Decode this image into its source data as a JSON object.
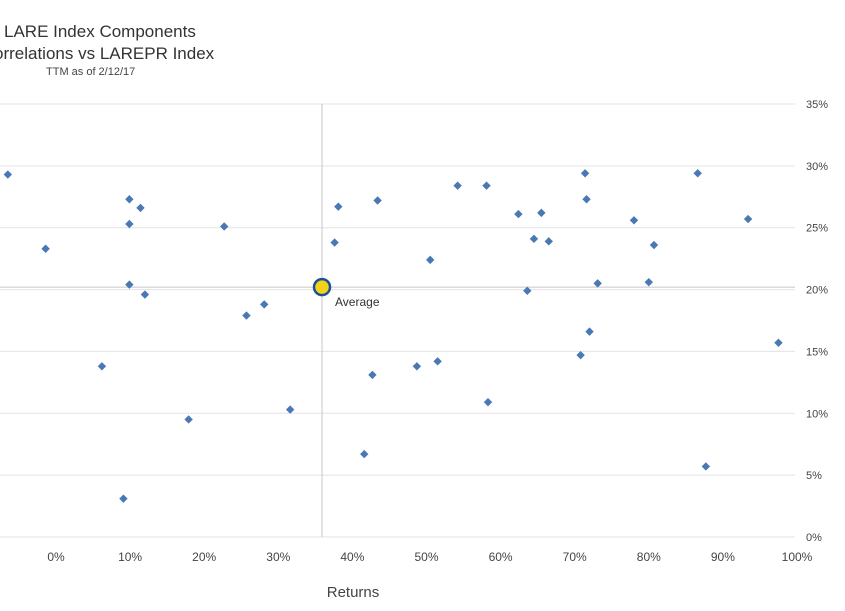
{
  "chart_data": {
    "type": "scatter",
    "title_line1": "LARE Index Components",
    "title_line2": "orrelations vs LAREPR Index",
    "subtitle": "TTM as of 2/12/17",
    "xlabel": "Returns",
    "ylabel": "",
    "xlim": [
      -0.07,
      1.0
    ],
    "ylim": [
      0.0,
      0.35
    ],
    "x_ticks": [
      {
        "value": 0.0,
        "label": "0%"
      },
      {
        "value": 0.1,
        "label": "10%"
      },
      {
        "value": 0.2,
        "label": "20%"
      },
      {
        "value": 0.3,
        "label": "30%"
      },
      {
        "value": 0.4,
        "label": "40%"
      },
      {
        "value": 0.5,
        "label": "50%"
      },
      {
        "value": 0.6,
        "label": "60%"
      },
      {
        "value": 0.7,
        "label": "70%"
      },
      {
        "value": 0.8,
        "label": "80%"
      },
      {
        "value": 0.9,
        "label": "90%"
      },
      {
        "value": 1.0,
        "label": "100%"
      }
    ],
    "y_ticks": [
      {
        "value": 0.0,
        "label": "0%"
      },
      {
        "value": 0.05,
        "label": "5%"
      },
      {
        "value": 0.1,
        "label": "10%"
      },
      {
        "value": 0.15,
        "label": "15%"
      },
      {
        "value": 0.2,
        "label": "20%"
      },
      {
        "value": 0.25,
        "label": "25%"
      },
      {
        "value": 0.3,
        "label": "30%"
      },
      {
        "value": 0.35,
        "label": "35%"
      }
    ],
    "grid": true,
    "series": [
      {
        "color": "#4a78b5",
        "marker": "diamond",
        "points": [
          {
            "x": -0.065,
            "y": 0.293
          },
          {
            "x": -0.014,
            "y": 0.233
          },
          {
            "x": 0.062,
            "y": 0.138
          },
          {
            "x": 0.091,
            "y": 0.031
          },
          {
            "x": 0.099,
            "y": 0.273
          },
          {
            "x": 0.099,
            "y": 0.253
          },
          {
            "x": 0.099,
            "y": 0.204
          },
          {
            "x": 0.114,
            "y": 0.266
          },
          {
            "x": 0.12,
            "y": 0.196
          },
          {
            "x": 0.179,
            "y": 0.095
          },
          {
            "x": 0.227,
            "y": 0.251
          },
          {
            "x": 0.257,
            "y": 0.179
          },
          {
            "x": 0.281,
            "y": 0.188
          },
          {
            "x": 0.316,
            "y": 0.103
          },
          {
            "x": 0.376,
            "y": 0.238
          },
          {
            "x": 0.381,
            "y": 0.267
          },
          {
            "x": 0.416,
            "y": 0.067
          },
          {
            "x": 0.427,
            "y": 0.131
          },
          {
            "x": 0.434,
            "y": 0.272
          },
          {
            "x": 0.487,
            "y": 0.138
          },
          {
            "x": 0.505,
            "y": 0.224
          },
          {
            "x": 0.515,
            "y": 0.142
          },
          {
            "x": 0.542,
            "y": 0.284
          },
          {
            "x": 0.581,
            "y": 0.284
          },
          {
            "x": 0.583,
            "y": 0.109
          },
          {
            "x": 0.624,
            "y": 0.261
          },
          {
            "x": 0.636,
            "y": 0.199
          },
          {
            "x": 0.645,
            "y": 0.241
          },
          {
            "x": 0.655,
            "y": 0.262
          },
          {
            "x": 0.665,
            "y": 0.239
          },
          {
            "x": 0.708,
            "y": 0.147
          },
          {
            "x": 0.714,
            "y": 0.294
          },
          {
            "x": 0.716,
            "y": 0.273
          },
          {
            "x": 0.72,
            "y": 0.166
          },
          {
            "x": 0.731,
            "y": 0.205
          },
          {
            "x": 0.78,
            "y": 0.256
          },
          {
            "x": 0.8,
            "y": 0.206
          },
          {
            "x": 0.807,
            "y": 0.236
          },
          {
            "x": 0.866,
            "y": 0.294
          },
          {
            "x": 0.877,
            "y": 0.057
          },
          {
            "x": 0.934,
            "y": 0.257
          },
          {
            "x": 0.975,
            "y": 0.157
          }
        ]
      }
    ],
    "average": {
      "label": "Average",
      "x": 0.359,
      "y": 0.202,
      "fill": "#f2d21b",
      "stroke": "#1f4f99"
    },
    "colors": {
      "marker": "#4a78b5",
      "grid": "#e3e3e3",
      "average_line": "#c8c8c8"
    }
  }
}
